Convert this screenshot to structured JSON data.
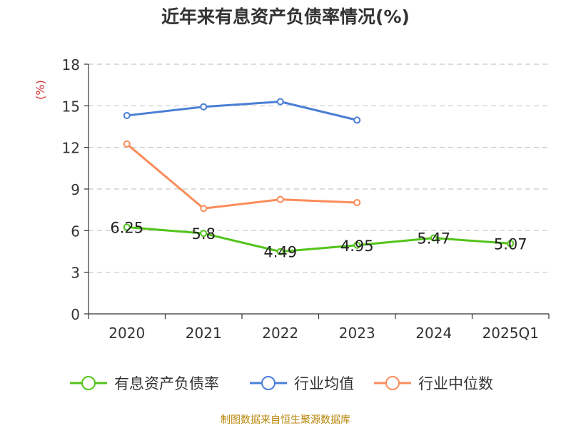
{
  "title": "近年来有息资产负债率情况(%)",
  "source": "制图数据来自恒生聚源数据库",
  "chart_data": {
    "type": "line",
    "title": "近年来有息资产负债率情况(%)",
    "xlabel": "",
    "ylabel": "(%)",
    "categories": [
      "2020",
      "2021",
      "2022",
      "2023",
      "2024",
      "2025Q1"
    ],
    "ylim": [
      0,
      18
    ],
    "yticks": [
      0,
      3,
      6,
      9,
      12,
      15,
      18
    ],
    "grid": true,
    "legend_position": "bottom",
    "series": [
      {
        "name": "有息资产负债率",
        "color": "#52c41a",
        "values": [
          6.25,
          5.8,
          4.49,
          4.95,
          5.47,
          5.07
        ],
        "labels": [
          "6.25",
          "5.8",
          "4.49",
          "4.95",
          "5.47",
          "5.07"
        ]
      },
      {
        "name": "行业均值",
        "color": "#4a7fd6",
        "values": [
          14.3,
          14.93,
          15.3,
          13.97,
          null,
          null
        ]
      },
      {
        "name": "行业中位数",
        "color": "#fa8c5a",
        "values": [
          12.25,
          7.6,
          8.25,
          8.02,
          null,
          null
        ]
      }
    ]
  }
}
